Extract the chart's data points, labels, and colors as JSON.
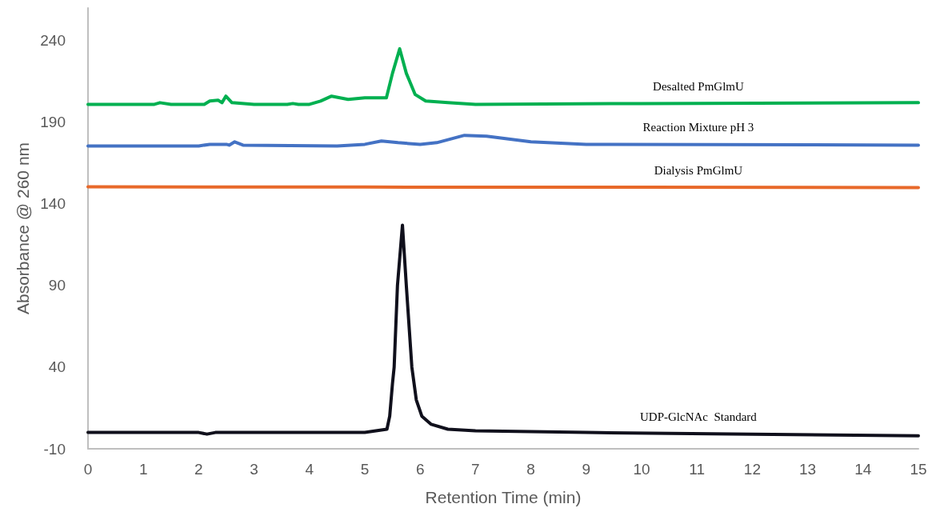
{
  "chart_data": {
    "type": "line",
    "xlabel": "Retention Time (min)",
    "ylabel": "Absorbance @ 260 nm",
    "xlim": [
      0,
      15
    ],
    "xticks": [
      0,
      1,
      2,
      3,
      4,
      5,
      6,
      7,
      8,
      9,
      10,
      11,
      12,
      13,
      14,
      15
    ],
    "ylim": [
      -10,
      260
    ],
    "yticks": [
      -10,
      40,
      90,
      140,
      190,
      240
    ],
    "grid": false,
    "legend": false,
    "marker": "none",
    "line_style": "solid",
    "series": [
      {
        "name": "Desalted PmGlmU",
        "color": "#00b050",
        "x": [
          0,
          1.2,
          1.3,
          1.5,
          2.1,
          2.2,
          2.35,
          2.42,
          2.49,
          2.6,
          3.0,
          3.6,
          3.7,
          3.8,
          4.0,
          4.2,
          4.4,
          4.7,
          5.0,
          5.39,
          5.5,
          5.63,
          5.75,
          5.91,
          6.1,
          6.5,
          7,
          10,
          15
        ],
        "values": [
          201,
          201,
          202,
          201,
          201,
          203,
          203.5,
          202,
          206,
          202,
          201,
          201,
          201.5,
          201,
          201,
          203,
          206,
          204,
          205,
          205,
          220,
          235,
          220,
          207,
          203,
          202,
          201,
          201.5,
          202
        ]
      },
      {
        "name": "Reaction Mixture pH 3",
        "color": "#4472c4",
        "x": [
          0,
          2.0,
          2.2,
          2.5,
          2.55,
          2.65,
          2.8,
          4.5,
          5.0,
          5.3,
          5.6,
          6.0,
          6.3,
          6.8,
          7.2,
          8,
          9,
          15
        ],
        "values": [
          175.5,
          175.5,
          176.5,
          176.5,
          176,
          178,
          176,
          175.5,
          176.5,
          178.5,
          177.5,
          176.5,
          177.5,
          182,
          181.5,
          178,
          176.5,
          176
        ]
      },
      {
        "name": "Dialysis PmGlmU",
        "color": "#e8692a",
        "x": [
          0,
          5,
          10,
          15
        ],
        "values": [
          150.5,
          150.3,
          150.2,
          150
        ]
      },
      {
        "name": "UDP-GlcNAc  Standard",
        "color": "#10101c",
        "x": [
          0,
          2.0,
          2.15,
          2.3,
          5.0,
          5.4,
          5.45,
          5.5,
          5.53,
          5.59,
          5.68,
          5.75,
          5.85,
          5.93,
          6.03,
          6.2,
          6.5,
          7,
          9,
          12,
          15
        ],
        "values": [
          0,
          0,
          -1,
          0,
          0,
          2,
          10,
          30,
          40,
          90,
          127,
          90,
          40,
          20,
          10,
          5,
          2,
          1,
          0,
          -1,
          -2
        ]
      }
    ]
  }
}
